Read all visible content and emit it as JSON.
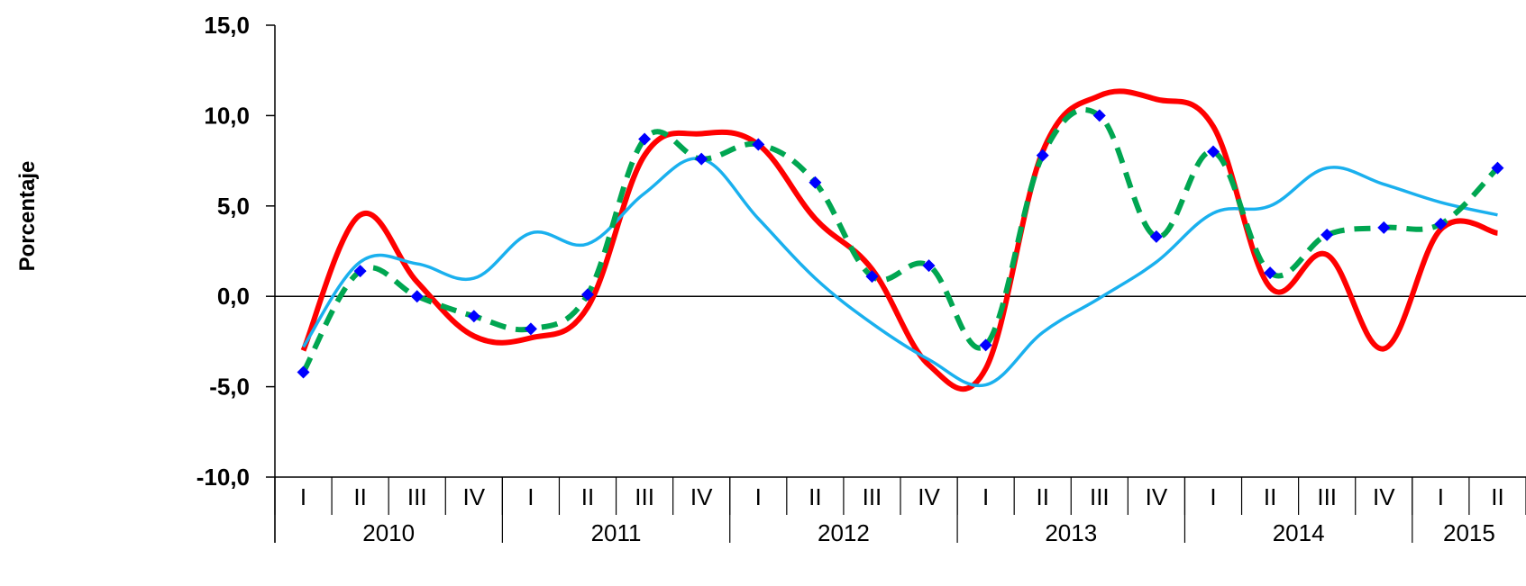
{
  "chart_data": {
    "type": "line",
    "ylabel": "Porcentaje",
    "ylim": [
      -10,
      15
    ],
    "yticks": [
      15,
      10,
      5,
      0,
      -5,
      -10
    ],
    "ytick_labels": [
      "15,0",
      "10,0",
      "5,0",
      "0,0",
      "-5,0",
      "-10,0"
    ],
    "categories": [
      "I",
      "II",
      "III",
      "IV",
      "I",
      "II",
      "III",
      "IV",
      "I",
      "II",
      "III",
      "IV",
      "I",
      "II",
      "III",
      "IV",
      "I",
      "II",
      "III",
      "IV",
      "I",
      "II"
    ],
    "year_groups": [
      {
        "label": "2010",
        "count": 4
      },
      {
        "label": "2011",
        "count": 4
      },
      {
        "label": "2012",
        "count": 4
      },
      {
        "label": "2013",
        "count": 4
      },
      {
        "label": "2014",
        "count": 4
      },
      {
        "label": "2015",
        "count": 2
      }
    ],
    "series": [
      {
        "color": "#ff0000",
        "style": "solid",
        "values": [
          -3.0,
          4.5,
          0.8,
          -2.2,
          -2.3,
          -0.6,
          7.8,
          9.0,
          8.4,
          4.3,
          1.5,
          -3.8,
          -4.0,
          8.0,
          11.1,
          10.9,
          9.4,
          0.5,
          2.3,
          -2.9,
          3.7,
          3.5
        ]
      },
      {
        "color": "#1ab0ee",
        "style": "solid",
        "values": [
          -2.8,
          1.9,
          1.8,
          1.0,
          3.5,
          2.9,
          5.7,
          7.6,
          4.3,
          1.0,
          -1.5,
          -3.5,
          -4.9,
          -2.0,
          -0.1,
          1.9,
          4.6,
          5.0,
          7.1,
          6.2,
          5.2,
          4.5
        ]
      },
      {
        "color": "#00a651",
        "style": "dashed",
        "marker": "diamond",
        "marker_color": "#0000ff",
        "values": [
          -4.2,
          1.4,
          0.0,
          -1.1,
          -1.8,
          0.1,
          8.7,
          7.6,
          8.4,
          6.3,
          1.1,
          1.7,
          -2.7,
          7.8,
          10.0,
          3.3,
          8.0,
          1.3,
          3.4,
          3.8,
          4.0,
          7.1
        ]
      }
    ]
  }
}
